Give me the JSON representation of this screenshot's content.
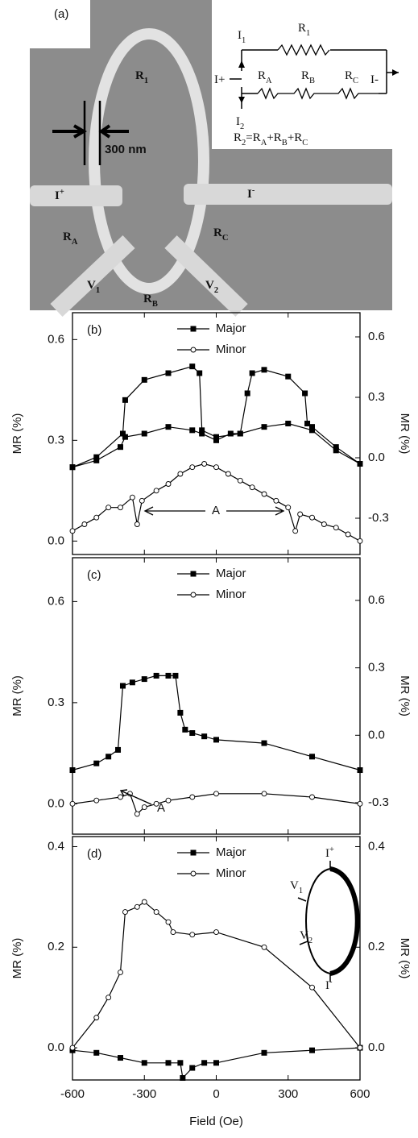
{
  "panel_a": {
    "label": "(a)",
    "scale_bar": "300 nm",
    "labels": [
      {
        "text": "R",
        "sub": "1"
      },
      {
        "text": "I",
        "sup": "+"
      },
      {
        "text": "I",
        "sup": "-"
      },
      {
        "text": "R",
        "sub": "A"
      },
      {
        "text": "R",
        "sub": "C"
      },
      {
        "text": "V",
        "sub": "1"
      },
      {
        "text": "R",
        "sub": "B"
      },
      {
        "text": "V",
        "sub": "2"
      }
    ],
    "circuit": {
      "labels": [
        {
          "text": "I",
          "sub": "1"
        },
        {
          "text": "R",
          "sub": "1"
        },
        {
          "text": "I+"
        },
        {
          "text": "I-"
        },
        {
          "text": "R",
          "sub": "A"
        },
        {
          "text": "R",
          "sub": "B"
        },
        {
          "text": "R",
          "sub": "C"
        },
        {
          "text": "I",
          "sub": "2"
        }
      ],
      "equation": [
        {
          "text": "R",
          "sub": "2"
        },
        {
          "text": "=R",
          "sub": "A"
        },
        {
          "text": "+R",
          "sub": "B"
        },
        {
          "text": "+R",
          "sub": "C"
        }
      ]
    }
  },
  "chart_data": [
    {
      "type": "line",
      "label": "(b)",
      "ylabel": "MR (%)",
      "y2label": "MR (%)",
      "xlim": [
        -600,
        600
      ],
      "xticks": [
        -600,
        -300,
        0,
        300,
        600
      ],
      "ylim": [
        -0.04,
        0.68
      ],
      "yticks": [
        {
          "value": 0,
          "label": "0.0"
        },
        0.3,
        0.6
      ],
      "y2lim": [
        -0.48,
        0.72
      ],
      "y2ticks": [
        -0.3,
        {
          "value": 0,
          "label": "0.0"
        },
        0.3,
        0.6
      ],
      "annotation": "A",
      "series": [
        {
          "name": "Major",
          "color": "#000000",
          "marker": "square",
          "x": [
            -600,
            -500,
            -400,
            -380,
            -300,
            -200,
            -100,
            -60,
            0,
            60,
            100,
            130,
            150,
            200,
            300,
            370,
            380,
            400,
            500,
            600,
            500,
            400,
            300,
            200,
            100,
            0,
            -60,
            -70,
            -100,
            -200,
            -300,
            -380,
            -390,
            -500,
            -600
          ],
          "values": [
            0.22,
            0.24,
            0.28,
            0.31,
            0.32,
            0.34,
            0.33,
            0.32,
            0.3,
            0.32,
            0.32,
            0.44,
            0.5,
            0.51,
            0.49,
            0.44,
            0.35,
            0.34,
            0.28,
            0.23,
            0.27,
            0.33,
            0.35,
            0.34,
            0.32,
            0.31,
            0.33,
            0.5,
            0.52,
            0.5,
            0.48,
            0.42,
            0.32,
            0.25,
            0.22
          ]
        },
        {
          "name": "Minor",
          "color": "#000000",
          "marker": "circle",
          "x": [
            -600,
            -550,
            -500,
            -450,
            -400,
            -350,
            -330,
            -310,
            -250,
            -200,
            -150,
            -100,
            -50,
            0,
            50,
            100,
            150,
            200,
            250,
            300,
            330,
            350,
            400,
            450,
            500,
            550,
            600
          ],
          "values": [
            0.03,
            0.05,
            0.07,
            0.1,
            0.1,
            0.13,
            0.05,
            0.12,
            0.15,
            0.17,
            0.2,
            0.22,
            0.23,
            0.22,
            0.2,
            0.18,
            0.16,
            0.14,
            0.12,
            0.1,
            0.03,
            0.08,
            0.07,
            0.05,
            0.04,
            0.02,
            0.0
          ]
        }
      ]
    },
    {
      "type": "line",
      "label": "(c)",
      "ylabel": "MR (%)",
      "y2label": "MR (%)",
      "xlim": [
        -600,
        600
      ],
      "xticks": [
        -600,
        -300,
        0,
        300,
        600
      ],
      "ylim": [
        -0.09,
        0.73
      ],
      "yticks": [
        {
          "value": 0,
          "label": "0.0"
        },
        0.3,
        0.6
      ],
      "y2lim": [
        -0.44,
        0.79
      ],
      "y2ticks": [
        -0.3,
        {
          "value": 0,
          "label": "0.0"
        },
        0.3,
        0.6
      ],
      "annotation": "A",
      "series": [
        {
          "name": "Major",
          "color": "#000000",
          "marker": "square",
          "x": [
            -600,
            -500,
            -450,
            -410,
            -390,
            -350,
            -300,
            -250,
            -200,
            -170,
            -150,
            -130,
            -100,
            -50,
            0,
            200,
            400,
            600
          ],
          "values": [
            0.1,
            0.12,
            0.14,
            0.16,
            0.35,
            0.36,
            0.37,
            0.38,
            0.38,
            0.38,
            0.27,
            0.22,
            0.21,
            0.2,
            0.19,
            0.18,
            0.14,
            0.1
          ]
        },
        {
          "name": "Minor",
          "color": "#000000",
          "marker": "circle",
          "x": [
            -600,
            -500,
            -400,
            -360,
            -330,
            -300,
            -250,
            -200,
            -100,
            0,
            200,
            400,
            600
          ],
          "values": [
            0.0,
            0.01,
            0.02,
            0.03,
            -0.03,
            -0.01,
            0.0,
            0.01,
            0.02,
            0.03,
            0.03,
            0.02,
            0.0
          ]
        }
      ]
    },
    {
      "type": "line",
      "label": "(d)",
      "ylabel": "MR (%)",
      "y2label": "MR (%)",
      "xlabel": "Field (Oe)",
      "xlim": [
        -600,
        600
      ],
      "xticks": [
        -600,
        -300,
        0,
        300,
        600
      ],
      "ylim": [
        -0.064,
        0.42
      ],
      "yticks": [
        {
          "value": 0,
          "label": "0.0"
        },
        0.2,
        0.4
      ],
      "y2lim": [
        -0.064,
        0.42
      ],
      "y2ticks": [
        {
          "value": 0,
          "label": "0.0"
        },
        0.2,
        0.4
      ],
      "inset_labels": [
        {
          "text": "I",
          "sup": "+"
        },
        {
          "text": "V",
          "sub": "1"
        },
        {
          "text": "V",
          "sub": "2"
        },
        {
          "text": "I",
          "sup": "-"
        }
      ],
      "series": [
        {
          "name": "Major",
          "color": "#000000",
          "marker": "square",
          "x": [
            -600,
            -500,
            -400,
            -300,
            -200,
            -150,
            -140,
            -100,
            -50,
            0,
            200,
            400,
            600
          ],
          "values": [
            -0.005,
            -0.01,
            -0.02,
            -0.03,
            -0.03,
            -0.03,
            -0.06,
            -0.04,
            -0.03,
            -0.03,
            -0.01,
            -0.005,
            0.0
          ]
        },
        {
          "name": "Minor",
          "color": "#000000",
          "marker": "circle",
          "x": [
            -600,
            -500,
            -450,
            -400,
            -380,
            -330,
            -300,
            -250,
            -200,
            -180,
            -100,
            0,
            200,
            400,
            600
          ],
          "values": [
            0.0,
            0.06,
            0.1,
            0.15,
            0.27,
            0.28,
            0.29,
            0.27,
            0.25,
            0.23,
            0.225,
            0.23,
            0.2,
            0.12,
            0.0
          ]
        }
      ]
    }
  ]
}
